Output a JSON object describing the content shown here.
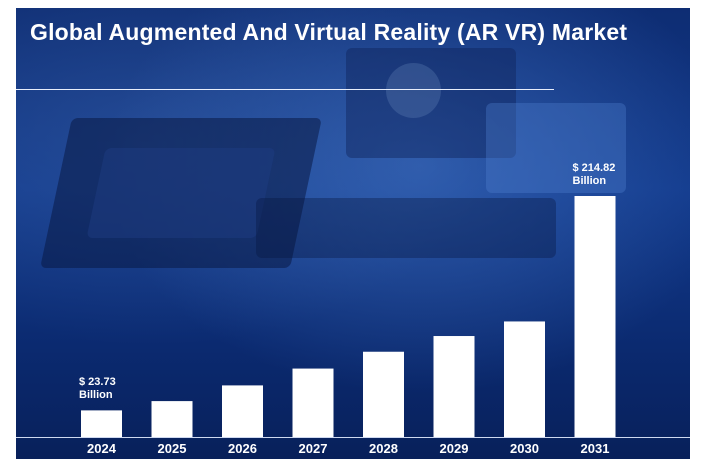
{
  "title": "Global Augmented And Virtual Reality (AR VR) Market",
  "annotations": {
    "first_value": "$ 23.73",
    "first_unit": "Billion",
    "last_value": "$ 214.82",
    "last_unit": "Billion"
  },
  "colors": {
    "bar": "#ffffff",
    "background": "#123a8c",
    "text": "#ffffff"
  },
  "chart_data": {
    "type": "bar",
    "title": "Global Augmented And Virtual Reality (AR VR) Market",
    "xlabel": "",
    "ylabel": "",
    "categories": [
      "2024",
      "2025",
      "2026",
      "2027",
      "2028",
      "2029",
      "2030",
      "2031"
    ],
    "values": [
      23.73,
      32.0,
      46.0,
      61.0,
      76.0,
      90.0,
      103.0,
      214.82
    ],
    "ylim": [
      0,
      240
    ],
    "grid": false,
    "legend": "none",
    "data_labels": [
      {
        "category": "2024",
        "text": "$ 23.73 Billion"
      },
      {
        "category": "2031",
        "text": "$ 214.82 Billion"
      }
    ]
  }
}
